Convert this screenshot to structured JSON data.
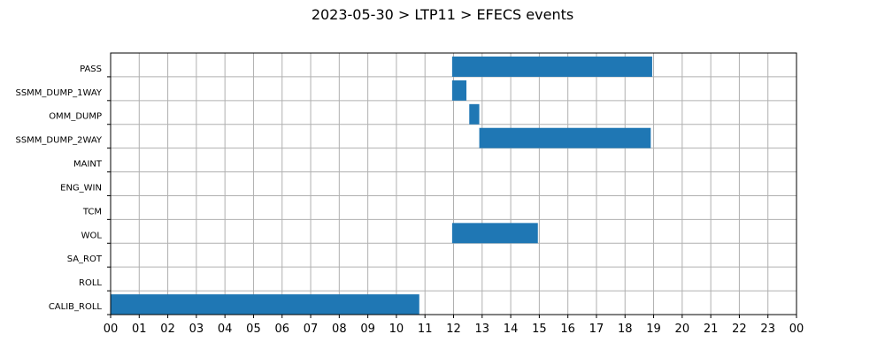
{
  "chart_data": {
    "type": "bar",
    "orientation": "horizontal-timeline",
    "title": "2023-05-30 > LTP11 > EFECS events",
    "xlabel": "",
    "ylabel": "",
    "xlim": [
      0,
      24
    ],
    "x_unit": "hour of day",
    "grid": true,
    "x_tick_labels": [
      "00",
      "01",
      "02",
      "03",
      "04",
      "05",
      "06",
      "07",
      "08",
      "09",
      "10",
      "11",
      "12",
      "13",
      "14",
      "15",
      "16",
      "17",
      "18",
      "19",
      "20",
      "21",
      "22",
      "23",
      "00"
    ],
    "categories": [
      "PASS",
      "SSMM_DUMP_1WAY",
      "OMM_DUMP",
      "SSMM_DUMP_2WAY",
      "MAINT",
      "ENG_WIN",
      "TCM",
      "WOL",
      "SA_ROT",
      "ROLL",
      "CALIB_ROLL"
    ],
    "events": [
      {
        "category": "PASS",
        "start": 11.95,
        "end": 18.95
      },
      {
        "category": "SSMM_DUMP_1WAY",
        "start": 11.95,
        "end": 12.45
      },
      {
        "category": "OMM_DUMP",
        "start": 12.55,
        "end": 12.9
      },
      {
        "category": "SSMM_DUMP_2WAY",
        "start": 12.9,
        "end": 18.9
      },
      {
        "category": "WOL",
        "start": 11.95,
        "end": 14.95
      },
      {
        "category": "CALIB_ROLL",
        "start": 0.0,
        "end": 10.8
      }
    ],
    "bar_color": "#1f77b4"
  }
}
